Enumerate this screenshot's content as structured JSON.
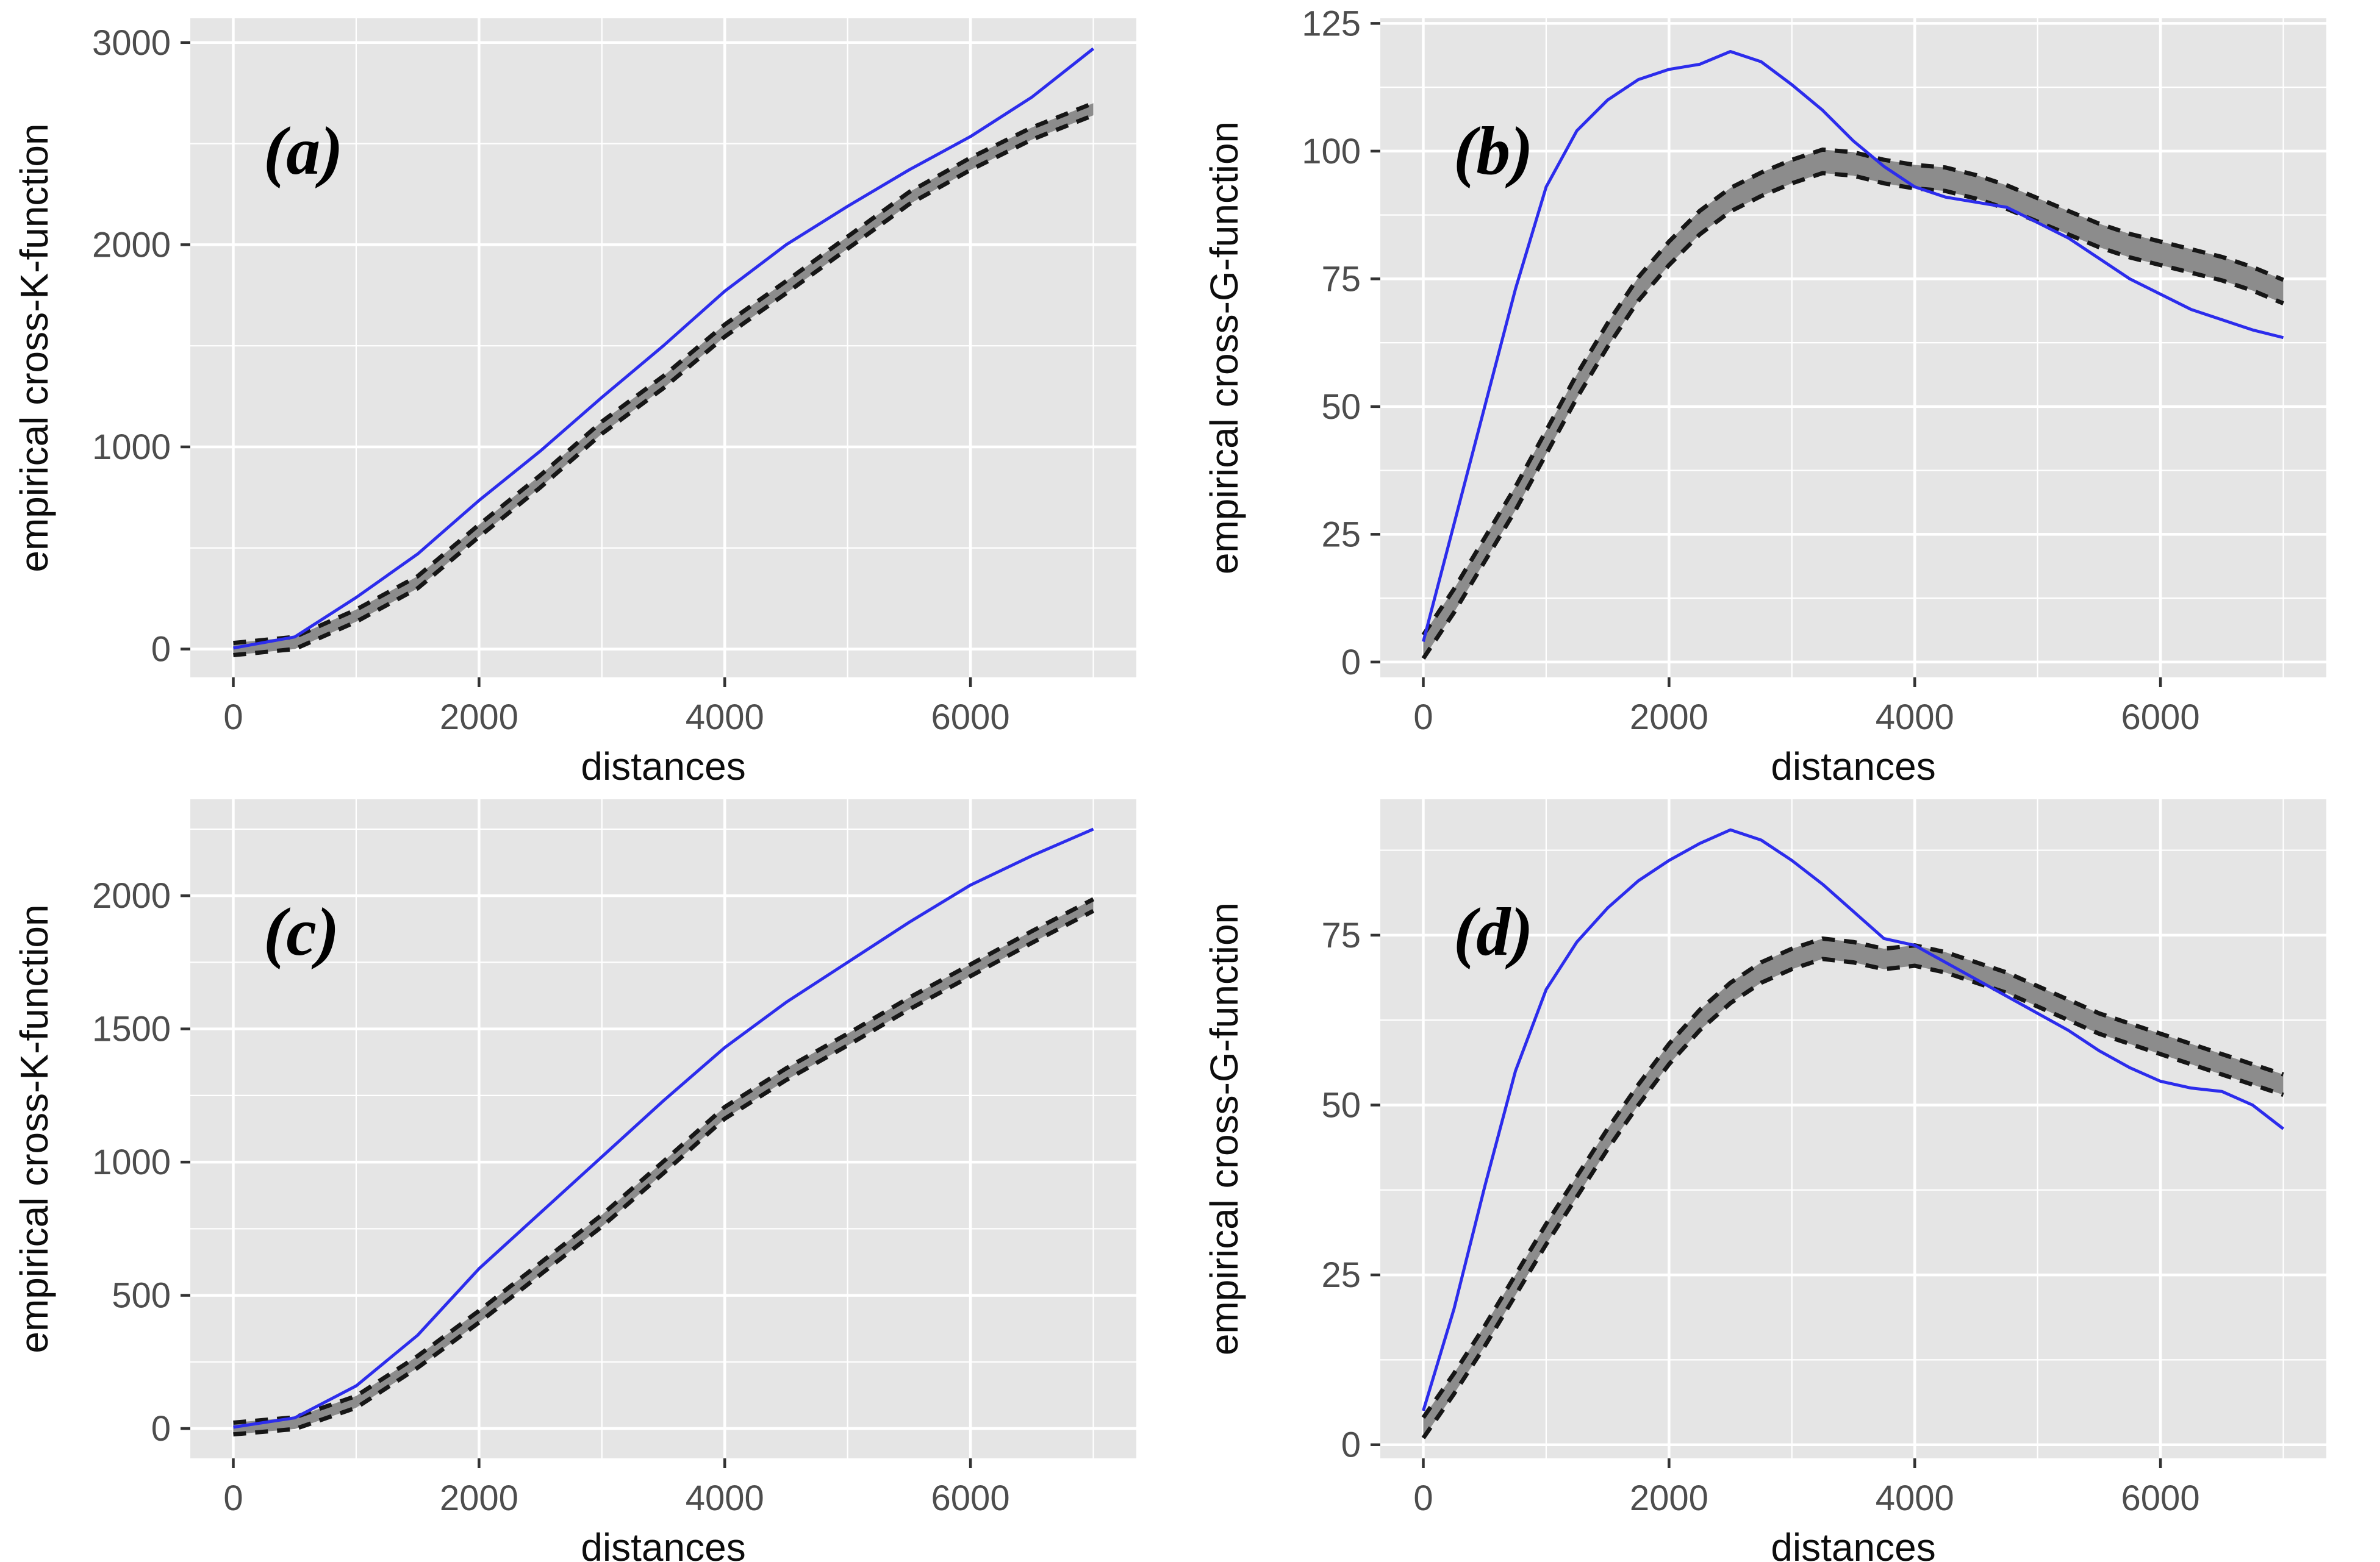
{
  "figure": {
    "description": "2x2 grid of point-pattern summary function plots with simulation envelopes",
    "xlabel": "distances",
    "ylabel_K": "empirical cross-K-function",
    "ylabel_G": "empirical cross-G-function"
  },
  "style": {
    "page_bg": "#ffffff",
    "panel_bg": "#e5e5e5",
    "grid_major": "#ffffff",
    "grid_minor": "#f0f0f0",
    "observed_blue": "#2c2cec",
    "band_fill": "#8c8c8c",
    "band_edge": "#161616",
    "tick_mark": "#333333",
    "tick_label": "#4d4d4d",
    "axis_title": "#0d0d0d",
    "corner_letter": "#000000"
  },
  "chart_data": {
    "type": "line",
    "note": "blue solid = observed function; gray ribbon between black dashed lines = simulation envelope",
    "panels": [
      {
        "key": "a",
        "corner_label": "(a)",
        "xlabel": "distances",
        "ylabel": "empirical cross-K-function",
        "xlim": [
          -350,
          7350
        ],
        "ylim": [
          -140,
          3120
        ],
        "xticks": {
          "major": [
            0,
            2000,
            4000,
            6000
          ],
          "minor": [
            1000,
            3000,
            5000,
            7000
          ]
        },
        "yticks": {
          "major": [
            0,
            1000,
            2000,
            3000
          ],
          "minor": [
            500,
            1500,
            2500
          ]
        },
        "x": [
          0,
          500,
          1000,
          1500,
          2000,
          2500,
          3000,
          3500,
          4000,
          4500,
          5000,
          5500,
          6000,
          6500,
          7000
        ],
        "observed": [
          5,
          60,
          255,
          470,
          735,
          980,
          1245,
          1500,
          1770,
          2000,
          2190,
          2370,
          2535,
          2730,
          2970
        ],
        "envelope_center": [
          0,
          30,
          165,
          330,
          585,
          830,
          1095,
          1320,
          1575,
          1790,
          2010,
          2230,
          2400,
          2550,
          2670
        ],
        "envelope_halfwidth": 30
      },
      {
        "key": "b",
        "corner_label": "(b)",
        "xlabel": "distances",
        "ylabel": "empirical cross-G-function",
        "xlim": [
          -350,
          7350
        ],
        "ylim": [
          -3,
          126
        ],
        "xticks": {
          "major": [
            0,
            2000,
            4000,
            6000
          ],
          "minor": [
            1000,
            3000,
            5000,
            7000
          ]
        },
        "yticks": {
          "major": [
            0,
            25,
            50,
            75,
            100,
            125
          ],
          "minor": [
            12.5,
            37.5,
            62.5,
            87.5,
            112.5
          ]
        },
        "x": [
          0,
          250,
          500,
          750,
          1000,
          1250,
          1500,
          1750,
          2000,
          2250,
          2500,
          2750,
          3000,
          3250,
          3500,
          3750,
          4000,
          4250,
          4500,
          4750,
          5000,
          5250,
          5500,
          5750,
          6000,
          6250,
          6500,
          6750,
          7000
        ],
        "observed": [
          4,
          27,
          50,
          73,
          93,
          104,
          110,
          114,
          116,
          117,
          119.5,
          117.5,
          113,
          108,
          102,
          97,
          93,
          91,
          90,
          89,
          86,
          83,
          79,
          75,
          72,
          69,
          67,
          65,
          63.5
        ],
        "envelope_center": [
          3,
          12,
          22,
          32,
          43,
          54,
          64,
          73,
          80,
          86,
          90.5,
          93.5,
          96,
          98,
          97.5,
          96,
          95,
          94.5,
          93,
          91,
          88.5,
          86,
          83.5,
          81.5,
          80,
          78.5,
          77,
          75,
          72.5
        ],
        "envelope_halfwidth": 2.3
      },
      {
        "key": "c",
        "corner_label": "(c)",
        "xlabel": "distances",
        "ylabel": "empirical cross-K-function",
        "xlim": [
          -350,
          7350
        ],
        "ylim": [
          -112,
          2362
        ],
        "xticks": {
          "major": [
            0,
            2000,
            4000,
            6000
          ],
          "minor": [
            1000,
            3000,
            5000,
            7000
          ]
        },
        "yticks": {
          "major": [
            0,
            500,
            1000,
            1500,
            2000
          ],
          "minor": [
            250,
            750,
            1250,
            1750,
            2250
          ]
        },
        "x": [
          0,
          500,
          1000,
          1500,
          2000,
          2500,
          3000,
          3500,
          4000,
          4500,
          5000,
          5500,
          6000,
          6500,
          7000
        ],
        "observed": [
          5,
          40,
          160,
          350,
          600,
          810,
          1020,
          1230,
          1430,
          1600,
          1750,
          1900,
          2040,
          2150,
          2250
        ],
        "envelope_center": [
          0,
          20,
          100,
          250,
          420,
          600,
          780,
          980,
          1185,
          1330,
          1460,
          1595,
          1720,
          1845,
          1965
        ],
        "envelope_halfwidth": 22
      },
      {
        "key": "d",
        "corner_label": "(d)",
        "xlabel": "distances",
        "ylabel": "empirical cross-G-function",
        "xlim": [
          -350,
          7350
        ],
        "ylim": [
          -2,
          95
        ],
        "xticks": {
          "major": [
            0,
            2000,
            4000,
            6000
          ],
          "minor": [
            1000,
            3000,
            5000,
            7000
          ]
        },
        "yticks": {
          "major": [
            0,
            25,
            50,
            75
          ],
          "minor": [
            12.5,
            37.5,
            62.5,
            87.5
          ]
        },
        "x": [
          0,
          250,
          500,
          750,
          1000,
          1250,
          1500,
          1750,
          2000,
          2250,
          2500,
          2750,
          3000,
          3250,
          3500,
          3750,
          4000,
          4250,
          4500,
          4750,
          5000,
          5250,
          5500,
          5750,
          6000,
          6250,
          6500,
          6750,
          7000
        ],
        "observed": [
          5,
          20,
          38,
          55,
          67,
          74,
          79,
          83,
          86,
          88.5,
          90.5,
          89,
          86,
          82.5,
          78.5,
          74.5,
          73.5,
          71,
          68.5,
          66,
          63.5,
          61,
          58,
          55.5,
          53.5,
          52.5,
          52,
          50,
          46.5
        ],
        "envelope_center": [
          2.5,
          9,
          16,
          23.5,
          31,
          38,
          45,
          51.5,
          57.5,
          62.5,
          66.5,
          69.5,
          71.5,
          73,
          72.5,
          71.5,
          72,
          71,
          69.5,
          68,
          66,
          64,
          62,
          60.5,
          59,
          57.5,
          56,
          54.5,
          53
        ],
        "envelope_halfwidth": 1.5
      }
    ]
  }
}
